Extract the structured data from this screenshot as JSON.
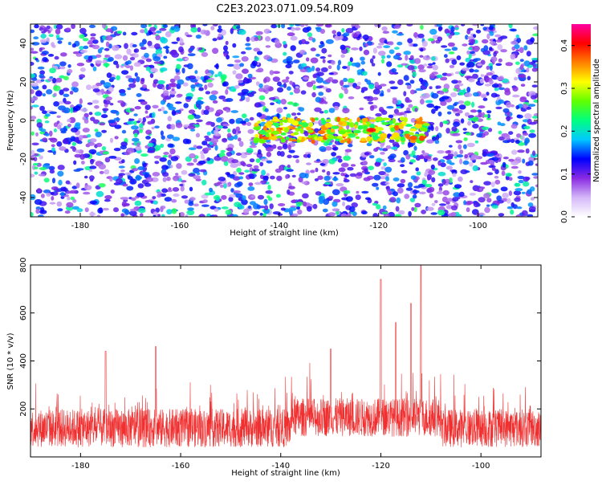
{
  "title": "C2E3.2023.071.09.54.R09",
  "colors": {
    "snr_line": "#f03030",
    "spec_bg": "#ffffff"
  },
  "chart_data": [
    {
      "type": "heatmap",
      "xlabel": "Height of straight line (km)",
      "ylabel": "Frequency (Hz)",
      "xlim": [
        -190,
        -88
      ],
      "ylim": [
        -50,
        50
      ],
      "x_ticks": [
        -180,
        -160,
        -140,
        -120,
        -100
      ],
      "y_ticks": [
        -40,
        -20,
        0,
        20,
        40
      ],
      "colorbar": {
        "label": "Normalized spectral amplitude",
        "range": [
          0.0,
          0.45
        ],
        "ticks": [
          "0.0",
          "0.1",
          "0.2",
          "0.3",
          "0.4"
        ],
        "tick_values": [
          0.0,
          0.1,
          0.2,
          0.3,
          0.4
        ],
        "colors": [
          "#ffffff",
          "#d4b8f8",
          "#8a2be2",
          "#0000ff",
          "#00c8ff",
          "#00ff80",
          "#60ff00",
          "#ffff00",
          "#ff8000",
          "#ff0000",
          "#ff00a0"
        ]
      },
      "feature": {
        "description_value_peak": 0.45,
        "band_height_range": [
          -145,
          -110
        ],
        "band_frequency_center": -5
      }
    },
    {
      "type": "line",
      "xlabel": "Height of straight line (km)",
      "ylabel": "SNR (10 * v/v)",
      "xlim": [
        -190,
        -88
      ],
      "ylim": [
        0,
        800
      ],
      "x_ticks": [
        -180,
        -160,
        -140,
        -120,
        -100
      ],
      "y_ticks": [
        200,
        400,
        600,
        800
      ],
      "peaks": [
        {
          "x": -120,
          "y": 740
        },
        {
          "x": -112,
          "y": 800
        },
        {
          "x": -114,
          "y": 640
        },
        {
          "x": -117,
          "y": 560
        },
        {
          "x": -130,
          "y": 450
        },
        {
          "x": -165,
          "y": 460
        },
        {
          "x": -175,
          "y": 440
        }
      ],
      "baseline_mean": 120
    }
  ]
}
